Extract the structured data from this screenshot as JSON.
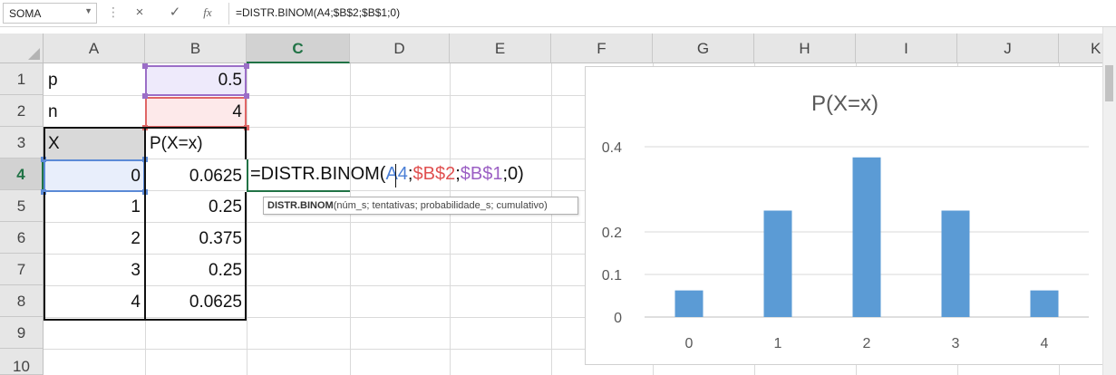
{
  "formula_bar": {
    "name_box": "SOMA",
    "cancel_icon": "×",
    "enter_icon": "✓",
    "fx_icon": "fx",
    "formula": "=DISTR.BINOM(A4;$B$2;$B$1;0)"
  },
  "columns": [
    "A",
    "B",
    "C",
    "D",
    "E",
    "F",
    "G",
    "H",
    "I",
    "J",
    "K"
  ],
  "rows": [
    "1",
    "2",
    "3",
    "4",
    "5",
    "6",
    "7",
    "8",
    "9",
    "10"
  ],
  "cells": {
    "A1": "p",
    "B1": "0.5",
    "A2": "n",
    "B2": "4",
    "A3": "X",
    "B3": "P(X=x)",
    "A4": "0",
    "B4": "0.0625",
    "A5": "1",
    "B5": "0.25",
    "A6": "2",
    "B6": "0.375",
    "A7": "3",
    "B7": "0.25",
    "A8": "4",
    "B8": "0.0625"
  },
  "edit": {
    "fn": "=DISTR.BINOM(",
    "arg1": "A4",
    "sep1": ";",
    "arg2": "$B$2",
    "sep2": ";",
    "arg3": "$B$1",
    "tail": ";0)"
  },
  "tooltip": {
    "fn_name": "DISTR.BINOM",
    "args": "(núm_s; tentativas; probabilidade_s; cumulativo)"
  },
  "colors": {
    "arg1": "#4a7fd6",
    "arg2": "#e05050",
    "arg3": "#9b5fc4",
    "bar": "#5b9bd5",
    "accent": "#217346"
  },
  "chart_data": {
    "type": "bar",
    "title": "P(X=x)",
    "categories": [
      "0",
      "1",
      "2",
      "3",
      "4"
    ],
    "values": [
      0.0625,
      0.25,
      0.375,
      0.25,
      0.0625
    ],
    "yticks": [
      "0",
      "0.1",
      "0.2",
      "0.4"
    ],
    "ytick_values": [
      0,
      0.1,
      0.2,
      0.4
    ],
    "ylim": [
      0,
      0.4
    ],
    "grid": true,
    "legend": "none"
  }
}
